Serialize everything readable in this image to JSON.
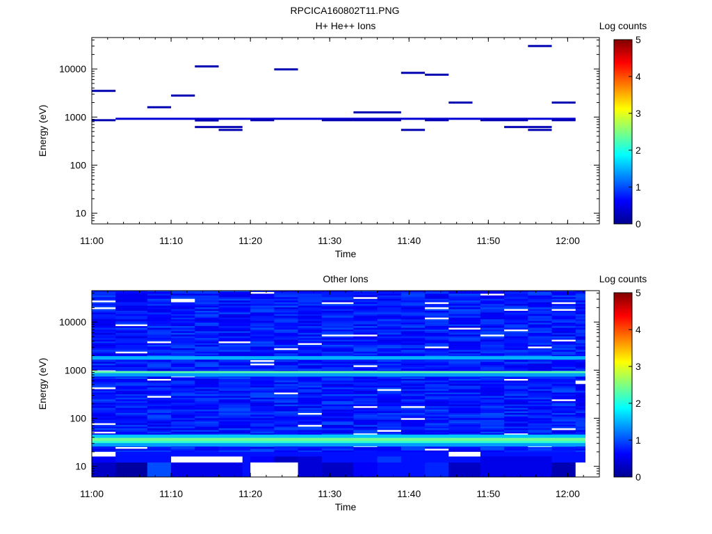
{
  "figure_title": "RPCICA160802T11.PNG",
  "chart_data": [
    {
      "type": "heatmap",
      "title": "H+ He++ Ions",
      "xlabel": "Time",
      "ylabel": "Energy (eV)",
      "x_ticks": [
        "11:00",
        "11:10",
        "11:20",
        "11:30",
        "11:40",
        "11:50",
        "12:00"
      ],
      "y_ticks": [
        "10",
        "100",
        "1000",
        "10000"
      ],
      "x_range": [
        "11:00",
        "12:04"
      ],
      "y_range": [
        6,
        45000
      ],
      "y_scale": "log",
      "colorbar": {
        "label": "Log counts",
        "ticks": [
          "0",
          "1",
          "2",
          "3",
          "4",
          "5"
        ],
        "range": [
          0,
          5
        ],
        "placement": "right"
      },
      "grid": false,
      "segments": [
        {
          "t0": "11:00",
          "t1": "11:03",
          "energy": 860,
          "log_counts": 0.2
        },
        {
          "t0": "11:00",
          "t1": "11:03",
          "energy": 3500,
          "log_counts": 0.2
        },
        {
          "t0": "11:03",
          "t1": "12:01",
          "energy": 920,
          "log_counts": 0.4
        },
        {
          "t0": "11:07",
          "t1": "11:10",
          "energy": 1600,
          "log_counts": 0.2
        },
        {
          "t0": "11:10",
          "t1": "11:13",
          "energy": 2800,
          "log_counts": 0.2
        },
        {
          "t0": "11:13",
          "t1": "11:16",
          "energy": 11300,
          "log_counts": 0.2
        },
        {
          "t0": "11:13",
          "t1": "11:16",
          "energy": 620,
          "log_counts": 0.2
        },
        {
          "t0": "11:13",
          "t1": "11:16",
          "energy": 850,
          "log_counts": 0.2
        },
        {
          "t0": "11:16",
          "t1": "11:19",
          "energy": 620,
          "log_counts": 0.2
        },
        {
          "t0": "11:16",
          "t1": "11:19",
          "energy": 540,
          "log_counts": 0.2
        },
        {
          "t0": "11:20",
          "t1": "11:23",
          "energy": 860,
          "log_counts": 0.2
        },
        {
          "t0": "11:23",
          "t1": "11:26",
          "energy": 9800,
          "log_counts": 0.2
        },
        {
          "t0": "11:29",
          "t1": "11:33",
          "energy": 860,
          "log_counts": 0.2
        },
        {
          "t0": "11:33",
          "t1": "11:39",
          "energy": 1250,
          "log_counts": 0.2
        },
        {
          "t0": "11:33",
          "t1": "11:39",
          "energy": 860,
          "log_counts": 0.2
        },
        {
          "t0": "11:39",
          "t1": "11:42",
          "energy": 8300,
          "log_counts": 0.2
        },
        {
          "t0": "11:39",
          "t1": "11:42",
          "energy": 540,
          "log_counts": 0.2
        },
        {
          "t0": "11:42",
          "t1": "11:45",
          "energy": 7600,
          "log_counts": 0.2
        },
        {
          "t0": "11:42",
          "t1": "11:45",
          "energy": 860,
          "log_counts": 0.2
        },
        {
          "t0": "11:45",
          "t1": "11:48",
          "energy": 2000,
          "log_counts": 0.2
        },
        {
          "t0": "11:49",
          "t1": "11:55",
          "energy": 860,
          "log_counts": 0.2
        },
        {
          "t0": "11:52",
          "t1": "11:55",
          "energy": 620,
          "log_counts": 0.2
        },
        {
          "t0": "11:55",
          "t1": "11:58",
          "energy": 30000,
          "log_counts": 0.2
        },
        {
          "t0": "11:55",
          "t1": "11:58",
          "energy": 620,
          "log_counts": 0.2
        },
        {
          "t0": "11:55",
          "t1": "11:58",
          "energy": 540,
          "log_counts": 0.2
        },
        {
          "t0": "11:58",
          "t1": "12:01",
          "energy": 2000,
          "log_counts": 0.2
        },
        {
          "t0": "11:58",
          "t1": "12:01",
          "energy": 860,
          "log_counts": 0.2
        }
      ]
    },
    {
      "type": "heatmap",
      "title": "Other Ions",
      "xlabel": "Time",
      "ylabel": "Energy (eV)",
      "x_ticks": [
        "11:00",
        "11:10",
        "11:20",
        "11:30",
        "11:40",
        "11:50",
        "12:00"
      ],
      "y_ticks": [
        "10",
        "100",
        "1000",
        "10000"
      ],
      "x_range": [
        "11:00",
        "12:04"
      ],
      "y_range": [
        6,
        45000
      ],
      "y_scale": "log",
      "colorbar": {
        "label": "Log counts",
        "ticks": [
          "0",
          "1",
          "2",
          "3",
          "4",
          "5"
        ],
        "range": [
          0,
          5
        ],
        "placement": "right"
      },
      "grid": false,
      "background_log_counts": 0.75,
      "time_columns": [
        "11:00",
        "11:03",
        "11:07",
        "11:10",
        "11:13",
        "11:16",
        "11:20",
        "11:23",
        "11:26",
        "11:29",
        "11:33",
        "11:36",
        "11:39",
        "11:42",
        "11:45",
        "11:49",
        "11:52",
        "11:55",
        "11:58",
        "12:01"
      ],
      "energy_bands": [
        {
          "energy": 1800,
          "log_counts": 1.5
        },
        {
          "energy": 880,
          "log_counts": 2.3
        },
        {
          "energy": 800,
          "log_counts": 1.4
        },
        {
          "energy": 42,
          "log_counts": 1.6
        },
        {
          "energy": 36,
          "log_counts": 2.4
        },
        {
          "energy": 31,
          "log_counts": 2.1
        },
        {
          "energy": 28,
          "log_counts": 1.4
        }
      ],
      "low_energy_cells": [
        {
          "t0": "11:00",
          "t1": "11:03",
          "energy_range": [
            12,
            16
          ],
          "log_counts": 0.6
        },
        {
          "t0": "11:00",
          "t1": "11:03",
          "energy_range": [
            6,
            12
          ],
          "log_counts": 0.3
        },
        {
          "t0": "11:03",
          "t1": "11:07",
          "energy_range": [
            6,
            12
          ],
          "log_counts": 0.1
        },
        {
          "t0": "11:07",
          "t1": "11:10",
          "energy_range": [
            6,
            12
          ],
          "log_counts": 1.0
        },
        {
          "t0": "11:10",
          "t1": "11:19",
          "energy_range": [
            6,
            12
          ],
          "log_counts": 0.5
        },
        {
          "t0": "11:20",
          "t1": "11:23",
          "energy_range": [
            12,
            16
          ],
          "log_counts": 0.6
        },
        {
          "t0": "11:23",
          "t1": "11:26",
          "energy_range": [
            12,
            16
          ],
          "log_counts": 0.3
        },
        {
          "t0": "11:26",
          "t1": "11:29",
          "energy_range": [
            6,
            16
          ],
          "log_counts": 0.4
        },
        {
          "t0": "11:29",
          "t1": "11:33",
          "energy_range": [
            6,
            12
          ],
          "log_counts": 0.3
        },
        {
          "t0": "11:33",
          "t1": "11:36",
          "energy_range": [
            6,
            12
          ],
          "log_counts": 0.6
        },
        {
          "t0": "11:36",
          "t1": "11:39",
          "energy_range": [
            12,
            16
          ],
          "log_counts": 0.9
        },
        {
          "t0": "11:42",
          "t1": "11:45",
          "energy_range": [
            6,
            12
          ],
          "log_counts": 0.8
        },
        {
          "t0": "11:45",
          "t1": "11:49",
          "energy_range": [
            6,
            12
          ],
          "log_counts": 0.3
        },
        {
          "t0": "11:49",
          "t1": "11:58",
          "energy_range": [
            6,
            16
          ],
          "log_counts": 0.5
        },
        {
          "t0": "11:58",
          "t1": "12:01",
          "energy_range": [
            6,
            12
          ],
          "log_counts": 0.2
        },
        {
          "t0": "12:01",
          "t1": "12:04",
          "energy_range": [
            6,
            16
          ],
          "log_counts": 0.7
        }
      ],
      "white_cells": [
        {
          "t0": "11:00",
          "t1": "11:03",
          "energy_range": [
            16,
            20
          ]
        },
        {
          "t0": "11:10",
          "t1": "11:19",
          "energy_range": [
            12,
            16
          ]
        },
        {
          "t0": "11:20",
          "t1": "11:26",
          "energy_range": [
            6,
            12
          ]
        },
        {
          "t0": "11:45",
          "t1": "11:49",
          "energy_range": [
            16,
            20
          ]
        },
        {
          "t0": "12:01",
          "t1": "12:04",
          "energy_range": [
            6,
            12
          ]
        }
      ]
    }
  ]
}
